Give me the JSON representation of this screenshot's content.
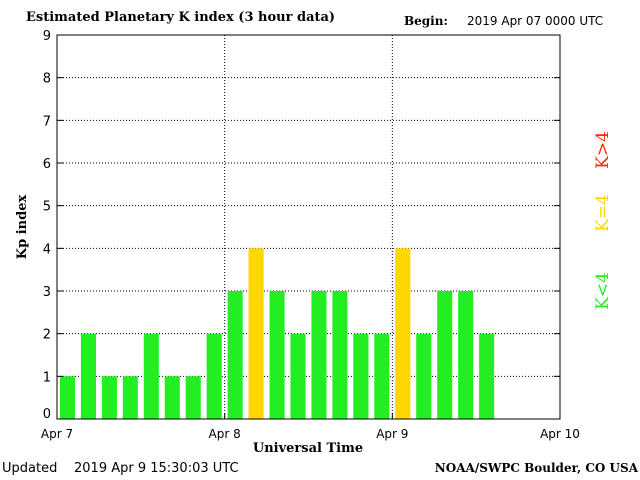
{
  "header": {
    "title": "Estimated Planetary K index (3 hour data)",
    "begin_label": "Begin:",
    "begin_value": "2019 Apr 07 0000 UTC"
  },
  "footer": {
    "updated_label": "Updated",
    "updated_value": "2019 Apr  9 15:30:03 UTC",
    "source": "NOAA/SWPC Boulder, CO USA"
  },
  "legend": [
    {
      "label": "K<4",
      "color": "#22ee22"
    },
    {
      "label": "K=4",
      "color": "#ffd700"
    },
    {
      "label": "K>4",
      "color": "#ff2a00"
    }
  ],
  "chart_data": {
    "type": "bar",
    "title": "Estimated Planetary K index (3 hour data)",
    "xlabel": "Universal Time",
    "ylabel": "Kp index",
    "ylim": [
      0,
      9
    ],
    "yticks": [
      0,
      1,
      2,
      3,
      4,
      5,
      6,
      7,
      8,
      9
    ],
    "x_range_hours": [
      0,
      72
    ],
    "x_ticks": [
      {
        "hour": 0,
        "label": "Apr 7"
      },
      {
        "hour": 24,
        "label": "Apr 8"
      },
      {
        "hour": 48,
        "label": "Apr 9"
      },
      {
        "hour": 72,
        "label": "Apr 10"
      }
    ],
    "grid": true,
    "bar_interval_hours": 3,
    "values": [
      1,
      2,
      1,
      1,
      2,
      1,
      1,
      2,
      3,
      4,
      3,
      2,
      3,
      3,
      2,
      2,
      4,
      2,
      3,
      3,
      2
    ],
    "colors": {
      "below": "#22ee22",
      "equal": "#ffd700",
      "above": "#ff2a00"
    }
  }
}
